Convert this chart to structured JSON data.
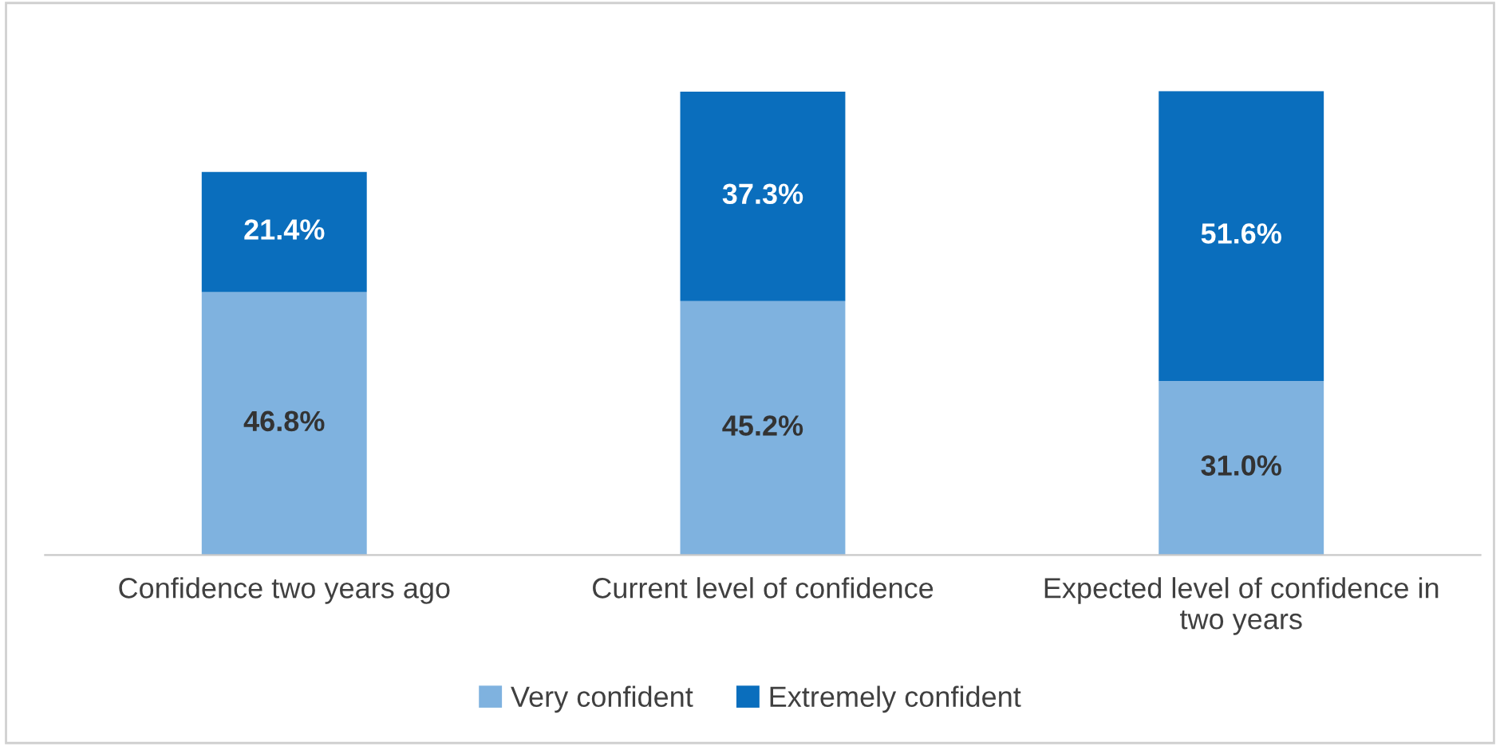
{
  "chart_data": {
    "type": "bar",
    "stacked": true,
    "tick_labels": "x",
    "grid": false,
    "legend": "bottom",
    "categories": [
      "Confidence two years ago",
      "Current level of confidence",
      "Expected level of confidence in\ntwo years"
    ],
    "series": [
      {
        "name": "Very confident",
        "color": "#7fb2df",
        "values": [
          46.8,
          45.2,
          31.0
        ],
        "value_labels": [
          "46.8%",
          "45.2%",
          "31.0%"
        ]
      },
      {
        "name": "Extremely confident",
        "color": "#0a6ebd",
        "values": [
          21.4,
          37.3,
          51.6
        ],
        "value_labels": [
          "21.4%",
          "37.3%",
          "51.6%"
        ]
      }
    ]
  }
}
